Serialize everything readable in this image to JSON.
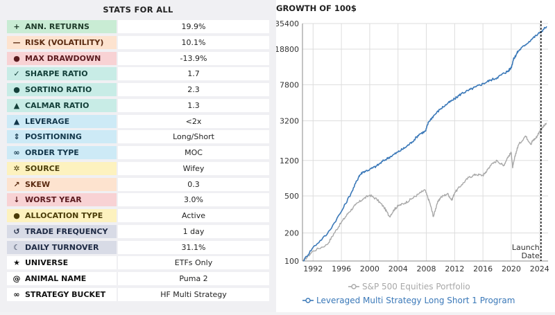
{
  "stats": {
    "title": "STATS FOR ALL",
    "rows": [
      {
        "icon": "plus-icon",
        "glyph": "+",
        "label": "ANN. RETURNS",
        "value": "19.9%",
        "bg": "#c9ecd4",
        "color": "#1f3b2a"
      },
      {
        "icon": "minus-icon",
        "glyph": "—",
        "label": "RISK (VOLATILITY)",
        "value": "10.1%",
        "bg": "#fde3cf",
        "color": "#5a2a10"
      },
      {
        "icon": "alert-circle-icon",
        "glyph": "●",
        "label": "MAX DRAWDOWN",
        "value": "-13.9%",
        "bg": "#f8d2d4",
        "color": "#5a1a1e"
      },
      {
        "icon": "check-icon",
        "glyph": "✓",
        "label": "SHARPE RATIO",
        "value": "1.7",
        "bg": "#c8ece6",
        "color": "#14403a"
      },
      {
        "icon": "check-circle-icon",
        "glyph": "●",
        "label": "SORTINO RATIO",
        "value": "2.3",
        "bg": "#c8ece6",
        "color": "#14403a"
      },
      {
        "icon": "bell-icon",
        "glyph": "▲",
        "label": "CALMAR RATIO",
        "value": "1.3",
        "bg": "#c8ece6",
        "color": "#14403a"
      },
      {
        "icon": "triangle-up-icon",
        "glyph": "▲",
        "label": "LEVERAGE",
        "value": "<2x",
        "bg": "#cdeaf6",
        "color": "#12364a"
      },
      {
        "icon": "up-down-chevron-icon",
        "glyph": "⇕",
        "label": "POSITIONING",
        "value": "Long/Short",
        "bg": "#cdeaf6",
        "color": "#12364a"
      },
      {
        "icon": "link-icon",
        "glyph": "∞",
        "label": "ORDER TYPE",
        "value": "MOC",
        "bg": "#cdeaf6",
        "color": "#12364a"
      },
      {
        "icon": "gear-icon",
        "glyph": "✲",
        "label": "SOURCE",
        "value": "Wifey",
        "bg": "#fdf2bf",
        "color": "#4a3c08"
      },
      {
        "icon": "external-link-icon",
        "glyph": "↗",
        "label": "SKEW",
        "value": "0.3",
        "bg": "#fde3cf",
        "color": "#5a2a10"
      },
      {
        "icon": "arrow-down-icon",
        "glyph": "↓",
        "label": "WORST YEAR",
        "value": "3.0%",
        "bg": "#f8d2d4",
        "color": "#5a1a1e"
      },
      {
        "icon": "question-circle-icon",
        "glyph": "●",
        "label": "ALLOCATION TYPE",
        "value": "Active",
        "bg": "#fdf2bf",
        "color": "#4a3c08"
      },
      {
        "icon": "history-icon",
        "glyph": "↺",
        "label": "TRADE FREQUENCY",
        "value": "1 day",
        "bg": "#d8dbe6",
        "color": "#1e2a44"
      },
      {
        "icon": "moon-icon",
        "glyph": "☾",
        "label": "DAILY TURNOVER",
        "value": "31.1%",
        "bg": "#d8dbe6",
        "color": "#1e2a44"
      },
      {
        "icon": "star-icon",
        "glyph": "★",
        "label": "UNIVERSE",
        "value": "ETFs Only",
        "bg": "#ffffff",
        "color": "#111111"
      },
      {
        "icon": "at-icon",
        "glyph": "@",
        "label": "ANIMAL NAME",
        "value": "Puma 2",
        "bg": "#ffffff",
        "color": "#111111"
      },
      {
        "icon": "link-icon",
        "glyph": "∞",
        "label": "STRATEGY BUCKET",
        "value": "HF Multi Strategy",
        "bg": "#ffffff",
        "color": "#111111"
      }
    ]
  },
  "chart_data": {
    "type": "line",
    "title": "GROWTH OF 100$",
    "y_scale": "log",
    "ylim": [
      100,
      35400
    ],
    "y_ticks": [
      {
        "value": 100,
        "label": "100"
      },
      {
        "value": 200,
        "label": "200"
      },
      {
        "value": 500,
        "label": "500"
      },
      {
        "value": 1200,
        "label": "1200"
      },
      {
        "value": 3200,
        "label": "3200"
      },
      {
        "value": 7800,
        "label": "7800"
      },
      {
        "value": 18800,
        "label": "18800"
      },
      {
        "value": 35400,
        "label": "35400"
      }
    ],
    "xlim": [
      1990.5,
      2025.2
    ],
    "x_ticks": [
      1992,
      1996,
      2000,
      2004,
      2008,
      2012,
      2016,
      2020,
      2024
    ],
    "grid": true,
    "legend_position": "bottom",
    "annotation": {
      "text_line1": "Launch",
      "text_line2": "Date",
      "x": 2024.0
    },
    "series": [
      {
        "name": "S&P 500 Equities Portfolio",
        "color": "#a8a8a8",
        "points": [
          [
            1990.6,
            100
          ],
          [
            1992,
            128
          ],
          [
            1994,
            150
          ],
          [
            1995,
            200
          ],
          [
            1996,
            260
          ],
          [
            1997,
            330
          ],
          [
            1998,
            400
          ],
          [
            1999,
            460
          ],
          [
            2000,
            510
          ],
          [
            2001,
            460
          ],
          [
            2002,
            380
          ],
          [
            2002.8,
            300
          ],
          [
            2003.5,
            360
          ],
          [
            2004,
            390
          ],
          [
            2005,
            420
          ],
          [
            2006,
            470
          ],
          [
            2007,
            530
          ],
          [
            2007.8,
            580
          ],
          [
            2008.5,
            420
          ],
          [
            2009.0,
            300
          ],
          [
            2009.5,
            410
          ],
          [
            2010,
            480
          ],
          [
            2011,
            530
          ],
          [
            2011.6,
            450
          ],
          [
            2012,
            540
          ],
          [
            2013,
            660
          ],
          [
            2014,
            790
          ],
          [
            2015,
            850
          ],
          [
            2016,
            830
          ],
          [
            2016.5,
            920
          ],
          [
            2017,
            1050
          ],
          [
            2018,
            1200
          ],
          [
            2018.9,
            1050
          ],
          [
            2019.5,
            1300
          ],
          [
            2020,
            1450
          ],
          [
            2020.2,
            1000
          ],
          [
            2020.6,
            1400
          ],
          [
            2021,
            1750
          ],
          [
            2022,
            2200
          ],
          [
            2022.8,
            1800
          ],
          [
            2023,
            1950
          ],
          [
            2023.5,
            2100
          ],
          [
            2024,
            2450
          ],
          [
            2024.5,
            2750
          ],
          [
            2025,
            3000
          ]
        ]
      },
      {
        "name": "Leveraged Multi Strategy Long Short 1 Program",
        "color": "#3a78b8",
        "points": [
          [
            1990.6,
            100
          ],
          [
            1992,
            140
          ],
          [
            1994,
            195
          ],
          [
            1996,
            340
          ],
          [
            1997.5,
            560
          ],
          [
            1998.5,
            820
          ],
          [
            1999,
            900
          ],
          [
            2000,
            960
          ],
          [
            2001,
            1050
          ],
          [
            2002,
            1200
          ],
          [
            2003,
            1330
          ],
          [
            2004,
            1480
          ],
          [
            2005,
            1650
          ],
          [
            2006,
            1900
          ],
          [
            2007,
            2300
          ],
          [
            2007.9,
            2480
          ],
          [
            2008.3,
            3100
          ],
          [
            2009,
            3600
          ],
          [
            2010,
            4300
          ],
          [
            2011,
            4900
          ],
          [
            2012,
            5500
          ],
          [
            2013,
            6300
          ],
          [
            2014,
            6800
          ],
          [
            2015,
            7400
          ],
          [
            2016,
            8000
          ],
          [
            2017,
            8700
          ],
          [
            2018,
            9300
          ],
          [
            2019,
            10400
          ],
          [
            2019.6,
            11000
          ],
          [
            2020,
            12000
          ],
          [
            2020.3,
            14500
          ],
          [
            2020.8,
            17000
          ],
          [
            2021,
            18000
          ],
          [
            2022,
            21000
          ],
          [
            2023,
            24500
          ],
          [
            2024,
            28000
          ],
          [
            2025,
            33000
          ]
        ]
      }
    ]
  }
}
